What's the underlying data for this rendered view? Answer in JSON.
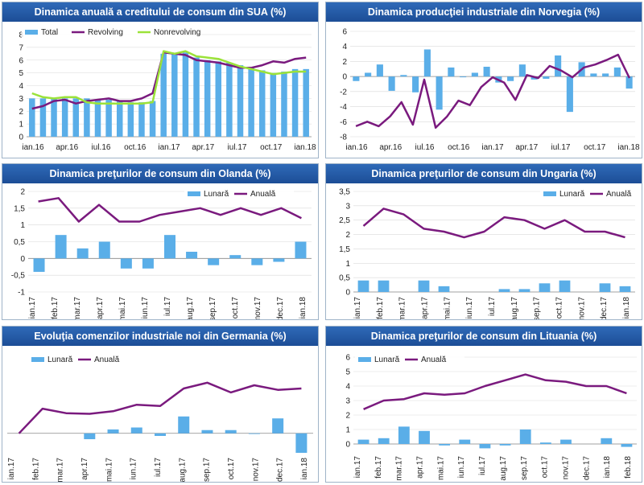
{
  "colors": {
    "bar": "#5aaee8",
    "purple": "#7a1a7e",
    "green": "#9be239",
    "grid": "#d9d9d9",
    "title_bg": "#1c4d96"
  },
  "chart_data": [
    {
      "type": "bar+line",
      "title": "Dinamica anuală a creditului de consum din SUA (%)",
      "y_ticks": [
        "0",
        "1",
        "2",
        "3",
        "4",
        "5",
        "6",
        "7",
        "8"
      ],
      "ylim": [
        0,
        8
      ],
      "x_labels": [
        "ian.16",
        "apr.16",
        "iul.16",
        "oct.16",
        "ian.17",
        "apr.17",
        "iul.17",
        "oct.17",
        "ian.18"
      ],
      "legend": [
        "Total",
        "Revolving",
        "Nonrevolving"
      ],
      "series": [
        {
          "name": "Total",
          "kind": "bar",
          "values": [
            3.0,
            3.0,
            3.0,
            3.0,
            3.0,
            3.0,
            2.9,
            2.9,
            2.8,
            2.7,
            2.7,
            2.8,
            6.5,
            6.5,
            6.6,
            6.2,
            6.0,
            5.9,
            5.8,
            5.6,
            5.4,
            5.2,
            5.0,
            5.1,
            5.3,
            5.3
          ]
        },
        {
          "name": "Revolving",
          "kind": "line",
          "values": [
            2.2,
            2.4,
            2.8,
            2.9,
            2.6,
            2.8,
            2.9,
            3.0,
            2.8,
            2.8,
            3.0,
            3.4,
            6.6,
            6.5,
            6.4,
            6.0,
            5.9,
            5.8,
            5.6,
            5.4,
            5.4,
            5.6,
            5.9,
            5.8,
            6.1,
            6.2
          ]
        },
        {
          "name": "Nonrevolving",
          "kind": "line",
          "values": [
            3.4,
            3.1,
            3.0,
            3.1,
            3.1,
            2.7,
            2.6,
            2.6,
            2.6,
            2.6,
            2.6,
            2.7,
            6.7,
            6.5,
            6.7,
            6.3,
            6.2,
            6.1,
            5.8,
            5.5,
            5.3,
            5.1,
            4.9,
            5.0,
            5.1,
            5.1
          ]
        }
      ]
    },
    {
      "type": "bar+line",
      "title": "Dinamica producţiei industriale din Norvegia (%)",
      "y_ticks": [
        "-8",
        "-6",
        "-4",
        "-2",
        "0",
        "2",
        "4",
        "6"
      ],
      "ylim": [
        -8,
        6
      ],
      "x_labels": [
        "ian.16",
        "apr.16",
        "iul.16",
        "oct.16",
        "ian.17",
        "apr.17",
        "iul.17",
        "oct.17",
        "ian.18"
      ],
      "legend": [],
      "series": [
        {
          "name": "Lunară",
          "kind": "bar",
          "values": [
            -0.6,
            0.5,
            1.6,
            -1.9,
            0.2,
            -2.1,
            3.6,
            -4.4,
            1.2,
            -0.1,
            0.5,
            1.3,
            -0.8,
            -0.6,
            1.6,
            -0.4,
            -0.3,
            2.8,
            -4.7,
            1.9,
            0.4,
            0.4,
            1.2,
            -1.6
          ]
        },
        {
          "name": "Anuală",
          "kind": "line",
          "values": [
            -6.6,
            -6.0,
            -6.6,
            -5.3,
            -3.4,
            -6.4,
            -0.4,
            -6.8,
            -5.3,
            -3.2,
            -3.8,
            -1.4,
            -0.1,
            -0.8,
            -3.1,
            0.2,
            -0.2,
            1.4,
            0.8,
            -0.1,
            1.2,
            1.6,
            2.2,
            2.9,
            -0.2
          ]
        }
      ]
    },
    {
      "type": "bar+line",
      "title": "Dinamica preţurilor de consum din Olanda (%)",
      "y_ticks": [
        "-1",
        "-0,5",
        "0",
        "0,5",
        "1",
        "1,5",
        "2"
      ],
      "ylim": [
        -1,
        2
      ],
      "x_labels": [
        "ian.17",
        "feb.17",
        "mar.17",
        "apr.17",
        "mai.17",
        "iun.17",
        "iul.17",
        "aug.17",
        "sep.17",
        "oct.17",
        "nov.17",
        "dec.17",
        "ian.18"
      ],
      "legend": [
        "Lunară",
        "Anuală"
      ],
      "series": [
        {
          "name": "Lunară",
          "kind": "bar",
          "values": [
            -0.4,
            0.7,
            0.3,
            0.5,
            -0.3,
            -0.3,
            0.7,
            0.2,
            -0.2,
            0.1,
            -0.2,
            -0.1,
            0.5
          ]
        },
        {
          "name": "Anuală",
          "kind": "line",
          "values": [
            1.7,
            1.8,
            1.1,
            1.6,
            1.1,
            1.1,
            1.3,
            1.4,
            1.5,
            1.3,
            1.5,
            1.3,
            1.5,
            1.2
          ]
        }
      ]
    },
    {
      "type": "bar+line",
      "title": "Dinamica preţurilor de consum din Ungaria (%)",
      "y_ticks": [
        "0",
        "0,5",
        "1",
        "1,5",
        "2",
        "2,5",
        "3",
        "3,5"
      ],
      "ylim": [
        0,
        3.5
      ],
      "x_labels": [
        "ian.17",
        "feb.17",
        "mar.17",
        "apr.17",
        "mai.17",
        "iun.17",
        "iul.17",
        "aug.17",
        "sep.17",
        "oct.17",
        "nov.17",
        "dec.17",
        "ian.18"
      ],
      "legend": [
        "Lunară",
        "Anuală"
      ],
      "series": [
        {
          "name": "Lunară",
          "kind": "bar",
          "values": [
            0.4,
            0.4,
            0.0,
            0.4,
            0.2,
            0.0,
            0.0,
            0.1,
            0.1,
            0.3,
            0.4,
            0.0,
            0.3,
            0.2
          ]
        },
        {
          "name": "Anuală",
          "kind": "line",
          "values": [
            2.3,
            2.9,
            2.7,
            2.2,
            2.1,
            1.9,
            2.1,
            2.6,
            2.5,
            2.2,
            2.5,
            2.1,
            2.1,
            1.9
          ]
        }
      ]
    },
    {
      "type": "bar+line",
      "title": "Evoluţia comenzilor industriale noi din Germania (%)",
      "y_ticks": [],
      "ylim": [
        -3,
        10
      ],
      "x_labels": [
        "ian.17",
        "feb.17",
        "mar.17",
        "apr.17",
        "mai.17",
        "iun.17",
        "iul.17",
        "aug.17",
        "sep.17",
        "oct.17",
        "nov.17",
        "dec.17",
        "ian.18"
      ],
      "legend": [
        "Lunară",
        "Anuală"
      ],
      "series": [
        {
          "name": "Lunară",
          "kind": "bar",
          "values": [
            0.0,
            0.0,
            0.0,
            -0.9,
            0.6,
            0.9,
            -0.4,
            2.6,
            0.5,
            0.5,
            -0.1,
            2.3,
            -3.0
          ]
        },
        {
          "name": "Anuală",
          "kind": "line",
          "values": [
            0.0,
            3.8,
            3.1,
            3.0,
            3.4,
            4.4,
            4.2,
            6.9,
            7.8,
            6.3,
            7.4,
            6.7,
            6.9
          ]
        }
      ]
    },
    {
      "type": "bar+line",
      "title": "Dinamica preţurilor de consum din Lituania (%)",
      "y_ticks": [
        "0",
        "1",
        "2",
        "3",
        "4",
        "5",
        "6"
      ],
      "ylim": [
        -0.5,
        6
      ],
      "x_labels": [
        "ian.17",
        "feb.17",
        "mar.17",
        "apr.17",
        "mai.17",
        "iun.17",
        "iul.17",
        "aug.17",
        "sep.17",
        "oct.17",
        "nov.17",
        "dec.17",
        "ian.18",
        "feb.18"
      ],
      "legend": [
        "Lunară",
        "Anuală"
      ],
      "series": [
        {
          "name": "Lunară",
          "kind": "bar",
          "values": [
            0.3,
            0.4,
            1.2,
            0.9,
            -0.1,
            0.3,
            -0.3,
            -0.1,
            1.0,
            0.1,
            0.3,
            0.0,
            0.4,
            -0.2
          ]
        },
        {
          "name": "Anuală",
          "kind": "line",
          "values": [
            2.4,
            3.0,
            3.1,
            3.5,
            3.4,
            3.5,
            4.0,
            4.4,
            4.8,
            4.4,
            4.3,
            4.0,
            4.0,
            3.5
          ]
        }
      ]
    }
  ]
}
